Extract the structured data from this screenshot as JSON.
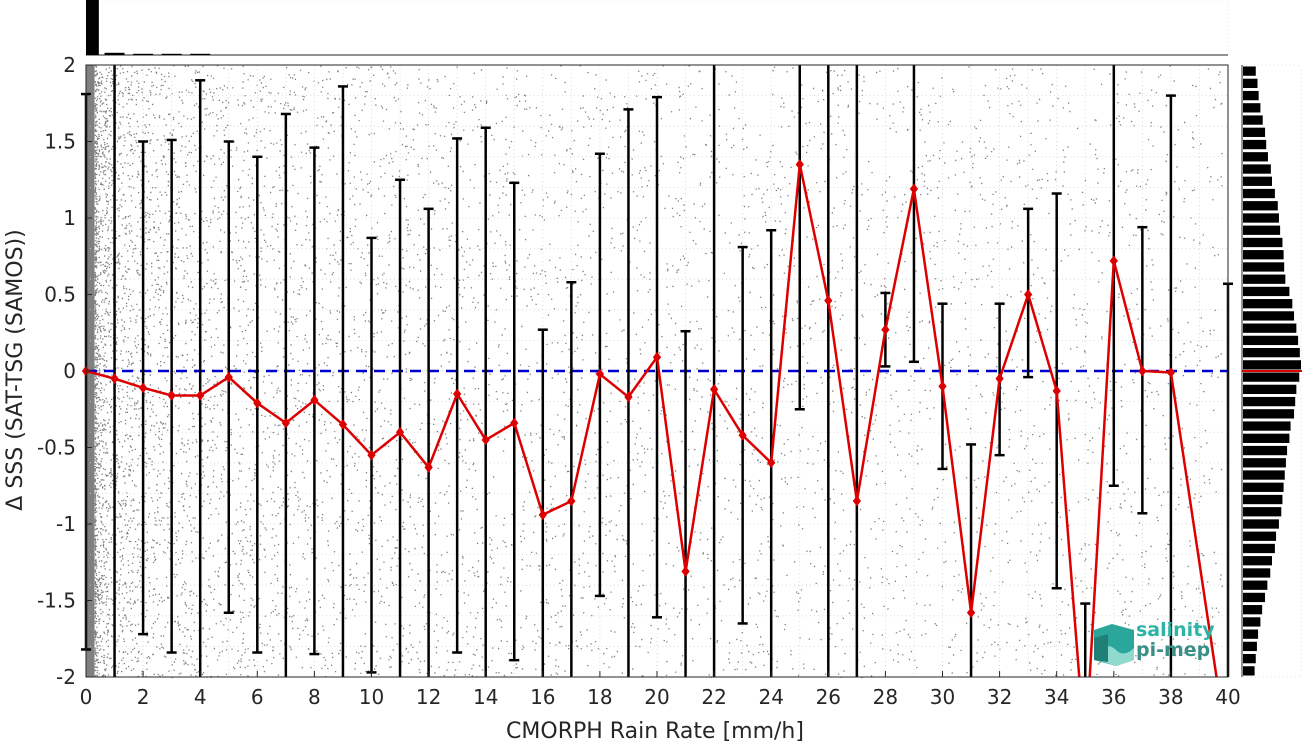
{
  "chart_data": {
    "type": "line",
    "xlabel": "CMORPH Rain Rate [mm/h]",
    "ylabel": "Δ SSS (SAT-TSG (SAMOS))",
    "xlim": [
      0,
      40
    ],
    "ylim": [
      -2,
      2
    ],
    "x_ticks": [
      0,
      2,
      4,
      6,
      8,
      10,
      12,
      14,
      16,
      18,
      20,
      22,
      24,
      26,
      28,
      30,
      32,
      34,
      36,
      38,
      40
    ],
    "y_ticks": [
      2,
      1.5,
      1,
      0.5,
      0,
      -0.5,
      -1,
      -1.5,
      -2
    ],
    "y_tick_labels": [
      "2",
      "1.5",
      "1",
      "0.5",
      "0",
      "-0.5",
      "-1",
      "-1.5",
      "-2"
    ],
    "grid": true,
    "colors": {
      "mean_line": "#dd0000",
      "zero_line": "#0000cc",
      "error_bars": "#000000",
      "scatter": "#808080",
      "histogram": "#000000"
    },
    "zero_reference": {
      "y": 0,
      "style": "dashed"
    },
    "series": [
      {
        "x": [
          0,
          1,
          2,
          3,
          4,
          5,
          6,
          7,
          8,
          9,
          10,
          11,
          12,
          13,
          14,
          15,
          16,
          17,
          18,
          19,
          20,
          21,
          22,
          23,
          24,
          25,
          26,
          27,
          28,
          29,
          30,
          31,
          32,
          33,
          34,
          35,
          36,
          37,
          38,
          40
        ],
        "values": [
          0,
          -0.05,
          -0.11,
          -0.16,
          -0.16,
          -0.04,
          -0.21,
          -0.34,
          -0.19,
          -0.35,
          -0.55,
          -0.4,
          -0.63,
          -0.15,
          -0.45,
          -0.34,
          -0.94,
          -0.85,
          -0.02,
          -0.17,
          0.09,
          -1.31,
          -0.12,
          -0.42,
          -0.6,
          1.35,
          0.46,
          -0.85,
          0.27,
          1.19,
          -0.1,
          -1.58,
          -0.05,
          0.5,
          -0.13,
          -2.5,
          0.72,
          0.0,
          -0.01,
          -2.5
        ]
      }
    ],
    "error_bars": [
      {
        "x": 0,
        "lo": -1.82,
        "hi": 1.81
      },
      {
        "x": 1,
        "lo": -2,
        "hi": 2
      },
      {
        "x": 2,
        "lo": -1.72,
        "hi": 1.5
      },
      {
        "x": 3,
        "lo": -1.84,
        "hi": 1.51
      },
      {
        "x": 4,
        "lo": -2,
        "hi": 1.9
      },
      {
        "x": 5,
        "lo": -1.58,
        "hi": 1.5
      },
      {
        "x": 6,
        "lo": -1.84,
        "hi": 1.4
      },
      {
        "x": 7,
        "lo": -2,
        "hi": 1.68
      },
      {
        "x": 8,
        "lo": -1.85,
        "hi": 1.46
      },
      {
        "x": 9,
        "lo": -2,
        "hi": 1.86
      },
      {
        "x": 10,
        "lo": -1.97,
        "hi": 0.87
      },
      {
        "x": 11,
        "lo": -2,
        "hi": 1.25
      },
      {
        "x": 12,
        "lo": -2,
        "hi": 1.06
      },
      {
        "x": 13,
        "lo": -1.84,
        "hi": 1.52
      },
      {
        "x": 14,
        "lo": -2,
        "hi": 1.59
      },
      {
        "x": 15,
        "lo": -1.89,
        "hi": 1.23
      },
      {
        "x": 16,
        "lo": -2,
        "hi": 0.27
      },
      {
        "x": 17,
        "lo": -2,
        "hi": 0.58
      },
      {
        "x": 18,
        "lo": -1.47,
        "hi": 1.42
      },
      {
        "x": 19,
        "lo": -2,
        "hi": 1.71
      },
      {
        "x": 20,
        "lo": -1.61,
        "hi": 1.79
      },
      {
        "x": 21,
        "lo": -2,
        "hi": 0.26
      },
      {
        "x": 22,
        "lo": -2,
        "hi": 2
      },
      {
        "x": 23,
        "lo": -1.65,
        "hi": 0.81
      },
      {
        "x": 24,
        "lo": -2,
        "hi": 0.92
      },
      {
        "x": 25,
        "lo": -0.25,
        "hi": 2
      },
      {
        "x": 26,
        "lo": -2,
        "hi": 2
      },
      {
        "x": 27,
        "lo": -2,
        "hi": 2
      },
      {
        "x": 28,
        "lo": 0.03,
        "hi": 0.51
      },
      {
        "x": 29,
        "lo": 0.06,
        "hi": 2
      },
      {
        "x": 30,
        "lo": -0.64,
        "hi": 0.44
      },
      {
        "x": 31,
        "lo": -2,
        "hi": -0.48
      },
      {
        "x": 32,
        "lo": -0.55,
        "hi": 0.44
      },
      {
        "x": 33,
        "lo": -0.04,
        "hi": 1.06
      },
      {
        "x": 34,
        "lo": -1.42,
        "hi": 1.16
      },
      {
        "x": 35,
        "lo": -2,
        "hi": -1.52
      },
      {
        "x": 36,
        "lo": -0.75,
        "hi": 2
      },
      {
        "x": 37,
        "lo": -0.93,
        "hi": 0.94
      },
      {
        "x": 38,
        "lo": -2,
        "hi": 1.8
      },
      {
        "x": 40,
        "lo": -2,
        "hi": 0.57
      }
    ],
    "top_histogram": {
      "x": [
        0,
        1,
        2,
        3,
        4
      ],
      "counts": [
        1.0,
        0.04,
        0.02,
        0.01,
        0.01
      ]
    },
    "right_histogram": {
      "y": [
        1.96,
        1.88,
        1.8,
        1.72,
        1.64,
        1.56,
        1.48,
        1.4,
        1.32,
        1.24,
        1.16,
        1.08,
        1.0,
        0.92,
        0.84,
        0.76,
        0.68,
        0.6,
        0.52,
        0.44,
        0.36,
        0.28,
        0.2,
        0.12,
        0.04,
        -0.04,
        -0.12,
        -0.2,
        -0.28,
        -0.36,
        -0.44,
        -0.52,
        -0.6,
        -0.68,
        -0.76,
        -0.84,
        -0.92,
        -1.0,
        -1.08,
        -1.16,
        -1.24,
        -1.32,
        -1.4,
        -1.48,
        -1.56,
        -1.64,
        -1.72,
        -1.8,
        -1.88,
        -1.96
      ],
      "counts": [
        0.22,
        0.25,
        0.27,
        0.3,
        0.34,
        0.38,
        0.4,
        0.43,
        0.48,
        0.5,
        0.55,
        0.6,
        0.62,
        0.64,
        0.68,
        0.7,
        0.71,
        0.73,
        0.8,
        0.85,
        0.88,
        0.92,
        0.95,
        0.98,
        1.0,
        0.97,
        0.92,
        0.9,
        0.88,
        0.82,
        0.8,
        0.76,
        0.74,
        0.72,
        0.7,
        0.68,
        0.66,
        0.62,
        0.57,
        0.55,
        0.5,
        0.47,
        0.42,
        0.38,
        0.33,
        0.3,
        0.26,
        0.24,
        0.22,
        0.2
      ],
      "mean": 0
    },
    "scatter": {
      "color": "#808080",
      "x_range": [
        0,
        40
      ],
      "y_range": [
        -2,
        2
      ],
      "density": "decreasing with rain rate"
    }
  },
  "logo": {
    "line1": "salinity",
    "line2": "pi-mep"
  }
}
